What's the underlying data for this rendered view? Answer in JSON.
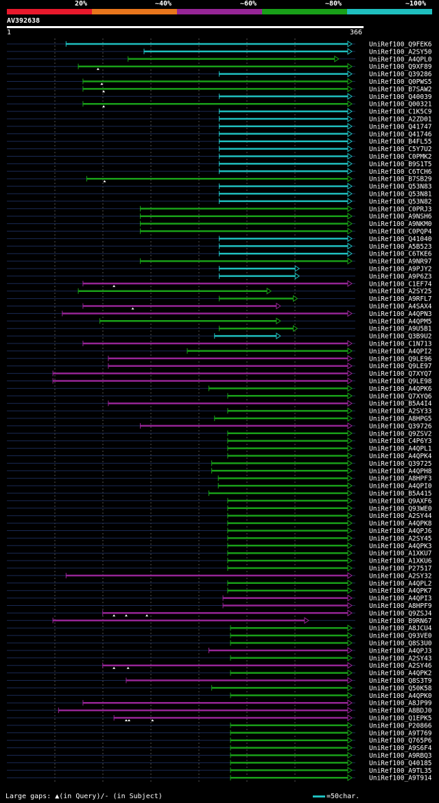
{
  "legend": {
    "colors": [
      "#e8192c",
      "#e8761c",
      "#962596",
      "#19a019",
      "#1fbfbf"
    ],
    "labels": [
      "20%",
      "~40%",
      "~60%",
      "~80%",
      "~100%"
    ]
  },
  "query": {
    "title": "AV392638",
    "start_label": "1",
    "end_label": "366"
  },
  "footer": {
    "gaps_text": "Large gaps: ▲(in Query)/- (in Subject)",
    "scale_text": "=50char."
  },
  "chart_data": {
    "type": "alignment",
    "x_range": [
      1,
      366
    ],
    "classes": {
      "p": "~60%",
      "g": "~80%",
      "c": "~100%"
    },
    "hits": [
      {
        "name": "UniRef100_Q9FEK6",
        "c": "c",
        "s": 64,
        "e": 366,
        "gaps": []
      },
      {
        "name": "UniRef100_A2SY50",
        "c": "c",
        "s": 147,
        "e": 366,
        "gaps": []
      },
      {
        "name": "UniRef100_A4QPL0",
        "c": "g",
        "s": 130,
        "e": 352,
        "gaps": []
      },
      {
        "name": "UniRef100_Q9XF89",
        "c": "g",
        "s": 77,
        "e": 366,
        "gaps": [
          98
        ]
      },
      {
        "name": "UniRef100_Q39286",
        "c": "c",
        "s": 227,
        "e": 366,
        "gaps": []
      },
      {
        "name": "UniRef100_Q0PWS5",
        "c": "g",
        "s": 82,
        "e": 366,
        "gaps": [
          102
        ]
      },
      {
        "name": "UniRef100_B7SAW2",
        "c": "g",
        "s": 82,
        "e": 366,
        "gaps": [
          104
        ]
      },
      {
        "name": "UniRef100_Q40039",
        "c": "c",
        "s": 227,
        "e": 366,
        "gaps": []
      },
      {
        "name": "UniRef100_Q00321",
        "c": "g",
        "s": 82,
        "e": 366,
        "gaps": [
          104
        ]
      },
      {
        "name": "UniRef100_C1K5C9",
        "c": "c",
        "s": 227,
        "e": 366,
        "gaps": []
      },
      {
        "name": "UniRef100_A2ZD01",
        "c": "c",
        "s": 227,
        "e": 366,
        "gaps": []
      },
      {
        "name": "UniRef100_Q41747",
        "c": "c",
        "s": 227,
        "e": 366,
        "gaps": []
      },
      {
        "name": "UniRef100_Q41746",
        "c": "c",
        "s": 227,
        "e": 366,
        "gaps": []
      },
      {
        "name": "UniRef100_B4FL55",
        "c": "c",
        "s": 227,
        "e": 366,
        "gaps": []
      },
      {
        "name": "UniRef100_C5Y7U2",
        "c": "c",
        "s": 227,
        "e": 366,
        "gaps": []
      },
      {
        "name": "UniRef100_C0PMK2",
        "c": "c",
        "s": 227,
        "e": 366,
        "gaps": []
      },
      {
        "name": "UniRef100_B9S1T5",
        "c": "c",
        "s": 227,
        "e": 366,
        "gaps": []
      },
      {
        "name": "UniRef100_C6TCH6",
        "c": "c",
        "s": 227,
        "e": 366,
        "gaps": []
      },
      {
        "name": "UniRef100_B7SB29",
        "c": "g",
        "s": 86,
        "e": 366,
        "gaps": [
          105
        ]
      },
      {
        "name": "UniRef100_Q53N83",
        "c": "c",
        "s": 227,
        "e": 366,
        "gaps": []
      },
      {
        "name": "UniRef100_Q53N81",
        "c": "c",
        "s": 227,
        "e": 366,
        "gaps": []
      },
      {
        "name": "UniRef100_Q53N82",
        "c": "c",
        "s": 227,
        "e": 366,
        "gaps": []
      },
      {
        "name": "UniRef100_C0PRJ3",
        "c": "g",
        "s": 143,
        "e": 366,
        "gaps": []
      },
      {
        "name": "UniRef100_A9NSH6",
        "c": "g",
        "s": 143,
        "e": 366,
        "gaps": []
      },
      {
        "name": "UniRef100_A9NKM0",
        "c": "g",
        "s": 143,
        "e": 366,
        "gaps": []
      },
      {
        "name": "UniRef100_C0PQP4",
        "c": "g",
        "s": 143,
        "e": 366,
        "gaps": []
      },
      {
        "name": "UniRef100_Q41040",
        "c": "c",
        "s": 227,
        "e": 366,
        "gaps": []
      },
      {
        "name": "UniRef100_A5B523",
        "c": "c",
        "s": 227,
        "e": 366,
        "gaps": []
      },
      {
        "name": "UniRef100_C6TKE6",
        "c": "c",
        "s": 227,
        "e": 366,
        "gaps": []
      },
      {
        "name": "UniRef100_A9NR97",
        "c": "g",
        "s": 143,
        "e": 366,
        "gaps": []
      },
      {
        "name": "UniRef100_A9PJY2",
        "c": "c",
        "s": 227,
        "e": 310,
        "gaps": []
      },
      {
        "name": "UniRef100_A9P6Z3",
        "c": "c",
        "s": 227,
        "e": 310,
        "gaps": []
      },
      {
        "name": "UniRef100_C1EF74",
        "c": "p",
        "s": 82,
        "e": 366,
        "gaps": [
          115
        ]
      },
      {
        "name": "UniRef100_A2SY25",
        "c": "g",
        "s": 77,
        "e": 280,
        "gaps": []
      },
      {
        "name": "UniRef100_A9RFL7",
        "c": "g",
        "s": 227,
        "e": 308,
        "gaps": []
      },
      {
        "name": "UniRef100_A4SAX4",
        "c": "p",
        "s": 82,
        "e": 290,
        "gaps": [
          135
        ]
      },
      {
        "name": "UniRef100_A4QPN3",
        "c": "p",
        "s": 60,
        "e": 366,
        "gaps": []
      },
      {
        "name": "UniRef100_A4QPM5",
        "c": "g",
        "s": 100,
        "e": 290,
        "gaps": []
      },
      {
        "name": "UniRef100_A9U5B1",
        "c": "g",
        "s": 227,
        "e": 308,
        "gaps": []
      },
      {
        "name": "UniRef100_Q3B9U2",
        "c": "c",
        "s": 222,
        "e": 290,
        "gaps": []
      },
      {
        "name": "UniRef100_C1N713",
        "c": "p",
        "s": 82,
        "e": 366,
        "gaps": []
      },
      {
        "name": "UniRef100_A4QPI2",
        "c": "g",
        "s": 193,
        "e": 366,
        "gaps": []
      },
      {
        "name": "UniRef100_Q9LE96",
        "c": "p",
        "s": 109,
        "e": 366,
        "gaps": []
      },
      {
        "name": "UniRef100_Q9LE97",
        "c": "p",
        "s": 109,
        "e": 366,
        "gaps": []
      },
      {
        "name": "UniRef100_Q7XYQ7",
        "c": "p",
        "s": 50,
        "e": 366,
        "gaps": []
      },
      {
        "name": "UniRef100_Q9LE98",
        "c": "p",
        "s": 50,
        "e": 366,
        "gaps": []
      },
      {
        "name": "UniRef100_A4QPK6",
        "c": "g",
        "s": 216,
        "e": 366,
        "gaps": []
      },
      {
        "name": "UniRef100_Q7XYQ6",
        "c": "g",
        "s": 236,
        "e": 366,
        "gaps": []
      },
      {
        "name": "UniRef100_B5A4I4",
        "c": "p",
        "s": 109,
        "e": 366,
        "gaps": []
      },
      {
        "name": "UniRef100_A2SY33",
        "c": "g",
        "s": 236,
        "e": 366,
        "gaps": []
      },
      {
        "name": "UniRef100_A8HPG5",
        "c": "g",
        "s": 222,
        "e": 366,
        "gaps": []
      },
      {
        "name": "UniRef100_Q39726",
        "c": "p",
        "s": 143,
        "e": 366,
        "gaps": []
      },
      {
        "name": "UniRef100_Q9ZSV2",
        "c": "g",
        "s": 236,
        "e": 366,
        "gaps": []
      },
      {
        "name": "UniRef100_C4P6Y3",
        "c": "g",
        "s": 236,
        "e": 366,
        "gaps": []
      },
      {
        "name": "UniRef100_A4QPL1",
        "c": "g",
        "s": 236,
        "e": 366,
        "gaps": []
      },
      {
        "name": "UniRef100_A4QPK4",
        "c": "g",
        "s": 236,
        "e": 366,
        "gaps": []
      },
      {
        "name": "UniRef100_Q39725",
        "c": "g",
        "s": 219,
        "e": 366,
        "gaps": []
      },
      {
        "name": "UniRef100_A4QPH8",
        "c": "g",
        "s": 219,
        "e": 366,
        "gaps": []
      },
      {
        "name": "UniRef100_A8HPF3",
        "c": "g",
        "s": 226,
        "e": 366,
        "gaps": []
      },
      {
        "name": "UniRef100_A4QPI0",
        "c": "g",
        "s": 226,
        "e": 366,
        "gaps": []
      },
      {
        "name": "UniRef100_B5A415",
        "c": "g",
        "s": 216,
        "e": 366,
        "gaps": []
      },
      {
        "name": "UniRef100_Q9AXF6",
        "c": "g",
        "s": 236,
        "e": 366,
        "gaps": []
      },
      {
        "name": "UniRef100_Q93WE0",
        "c": "g",
        "s": 236,
        "e": 366,
        "gaps": []
      },
      {
        "name": "UniRef100_A2SY44",
        "c": "g",
        "s": 236,
        "e": 366,
        "gaps": []
      },
      {
        "name": "UniRef100_A4QPK8",
        "c": "g",
        "s": 236,
        "e": 366,
        "gaps": []
      },
      {
        "name": "UniRef100_A4QPJ6",
        "c": "g",
        "s": 236,
        "e": 366,
        "gaps": []
      },
      {
        "name": "UniRef100_A2SY45",
        "c": "g",
        "s": 236,
        "e": 366,
        "gaps": []
      },
      {
        "name": "UniRef100_A4QPK3",
        "c": "g",
        "s": 236,
        "e": 366,
        "gaps": []
      },
      {
        "name": "UniRef100_A1XKU7",
        "c": "g",
        "s": 236,
        "e": 366,
        "gaps": []
      },
      {
        "name": "UniRef100_A1XKU6",
        "c": "g",
        "s": 236,
        "e": 366,
        "gaps": []
      },
      {
        "name": "UniRef100_P27517",
        "c": "g",
        "s": 236,
        "e": 366,
        "gaps": []
      },
      {
        "name": "UniRef100_A2SY32",
        "c": "p",
        "s": 64,
        "e": 366,
        "gaps": []
      },
      {
        "name": "UniRef100_A4QPL2",
        "c": "g",
        "s": 236,
        "e": 366,
        "gaps": []
      },
      {
        "name": "UniRef100_A4QPK7",
        "c": "g",
        "s": 236,
        "e": 366,
        "gaps": []
      },
      {
        "name": "UniRef100_A4QPI3",
        "c": "p",
        "s": 231,
        "e": 366,
        "gaps": []
      },
      {
        "name": "UniRef100_A8HPF9",
        "c": "p",
        "s": 231,
        "e": 366,
        "gaps": []
      },
      {
        "name": "UniRef100_Q9ZSJ4",
        "c": "p",
        "s": 103,
        "e": 366,
        "gaps": [
          115,
          128,
          150
        ]
      },
      {
        "name": "UniRef100_B9RN67",
        "c": "p",
        "s": 50,
        "e": 320,
        "gaps": []
      },
      {
        "name": "UniRef100_A8JCU4",
        "c": "g",
        "s": 239,
        "e": 366,
        "gaps": []
      },
      {
        "name": "UniRef100_Q93VE0",
        "c": "g",
        "s": 239,
        "e": 366,
        "gaps": []
      },
      {
        "name": "UniRef100_Q8S3U0",
        "c": "g",
        "s": 239,
        "e": 366,
        "gaps": []
      },
      {
        "name": "UniRef100_A4QPJ3",
        "c": "p",
        "s": 216,
        "e": 366,
        "gaps": []
      },
      {
        "name": "UniRef100_A2SY43",
        "c": "g",
        "s": 239,
        "e": 366,
        "gaps": []
      },
      {
        "name": "UniRef100_A2SY46",
        "c": "p",
        "s": 103,
        "e": 366,
        "gaps": [
          115,
          130
        ]
      },
      {
        "name": "UniRef100_A4QPK2",
        "c": "g",
        "s": 239,
        "e": 366,
        "gaps": []
      },
      {
        "name": "UniRef100_Q8S3T9",
        "c": "p",
        "s": 128,
        "e": 366,
        "gaps": []
      },
      {
        "name": "UniRef100_Q50K58",
        "c": "g",
        "s": 219,
        "e": 366,
        "gaps": []
      },
      {
        "name": "UniRef100_A4QPK0",
        "c": "g",
        "s": 239,
        "e": 366,
        "gaps": []
      },
      {
        "name": "UniRef100_A8JP99",
        "c": "p",
        "s": 82,
        "e": 366,
        "gaps": []
      },
      {
        "name": "UniRef100_A8BDJ0",
        "c": "p",
        "s": 56,
        "e": 366,
        "gaps": []
      },
      {
        "name": "UniRef100_Q1EPK5",
        "c": "p",
        "s": 115,
        "e": 366,
        "gaps": [
          128,
          131,
          156
        ]
      },
      {
        "name": "UniRef100_P20866",
        "c": "g",
        "s": 239,
        "e": 366,
        "gaps": []
      },
      {
        "name": "UniRef100_A9T769",
        "c": "g",
        "s": 239,
        "e": 366,
        "gaps": []
      },
      {
        "name": "UniRef100_Q765P6",
        "c": "g",
        "s": 239,
        "e": 366,
        "gaps": []
      },
      {
        "name": "UniRef100_A9S6F4",
        "c": "g",
        "s": 239,
        "e": 366,
        "gaps": []
      },
      {
        "name": "UniRef100_A9RBQ3",
        "c": "g",
        "s": 239,
        "e": 366,
        "gaps": []
      },
      {
        "name": "UniRef100_Q40185",
        "c": "g",
        "s": 239,
        "e": 366,
        "gaps": []
      },
      {
        "name": "UniRef100_A9TL35",
        "c": "g",
        "s": 239,
        "e": 366,
        "gaps": []
      },
      {
        "name": "UniRef100_A9T914",
        "c": "g",
        "s": 239,
        "e": 366,
        "gaps": []
      }
    ]
  }
}
